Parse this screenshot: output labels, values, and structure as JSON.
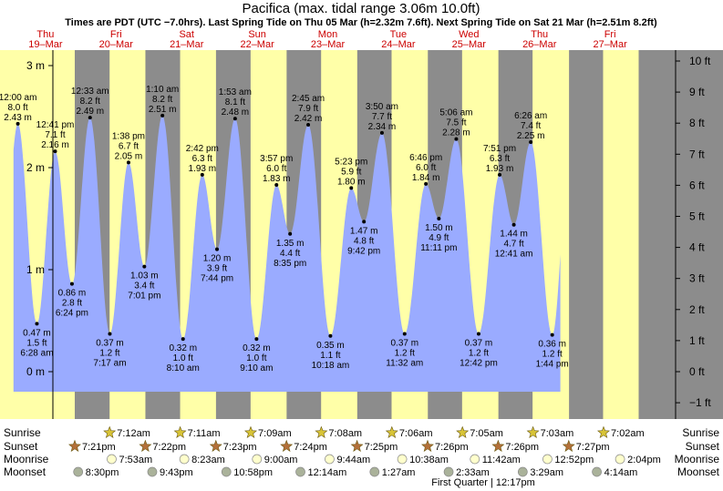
{
  "title": "Pacifica (max. tidal range 3.06m 10.0ft)",
  "subtitle": "Times are PDT (UTC −7.0hrs). Last Spring Tide on Thu 05 Mar (h=2.32m 7.6ft). Next Spring Tide on Sat 21 Mar (h=2.51m 8.2ft)",
  "colors": {
    "day": "#ffffa8",
    "night": "#8c8c8c",
    "tide": "#9aabff",
    "date_red": "#cc0000",
    "sun": "#d8c437",
    "sunset": "#b3703a",
    "moon": "#ffffcc",
    "moonset": "#aab29a"
  },
  "chart_data": {
    "type": "area",
    "title": "Pacifica (max. tidal range 3.06m 10.0ft)",
    "y_unit_left": "m",
    "y_unit_right": "ft",
    "left_ticks": [
      "3 m",
      "2 m",
      "1 m",
      "0 m"
    ],
    "left_tick_values": [
      3,
      2,
      1,
      0
    ],
    "right_ticks": [
      "10 ft",
      "9 ft",
      "8 ft",
      "7 ft",
      "6 ft",
      "5 ft",
      "4 ft",
      "3 ft",
      "2 ft",
      "1 ft",
      "0 ft",
      "−1 ft"
    ],
    "right_tick_values": [
      10,
      9,
      8,
      7,
      6,
      5,
      4,
      3,
      2,
      1,
      0,
      -1
    ],
    "ylim_m": [
      -0.47,
      3.06
    ],
    "x_range_hours": [
      0,
      216
    ],
    "days": [
      {
        "day": "Thu",
        "date": "19–Mar"
      },
      {
        "day": "Fri",
        "date": "20–Mar"
      },
      {
        "day": "Sat",
        "date": "21–Mar"
      },
      {
        "day": "Sun",
        "date": "22–Mar"
      },
      {
        "day": "Mon",
        "date": "23–Mar"
      },
      {
        "day": "Tue",
        "date": "24–Mar"
      },
      {
        "day": "Wed",
        "date": "25–Mar"
      },
      {
        "day": "Thu",
        "date": "26–Mar"
      },
      {
        "day": "Fri",
        "date": "27–Mar"
      }
    ],
    "sun_hours": [
      {
        "rise": null,
        "set": 19.35
      },
      {
        "rise": 31.2,
        "set": 43.37
      },
      {
        "rise": 55.18,
        "set": 67.38
      },
      {
        "rise": 79.15,
        "set": 91.4
      },
      {
        "rise": 103.13,
        "set": 115.42
      },
      {
        "rise": 127.1,
        "set": 139.43
      },
      {
        "rise": 151.08,
        "set": 163.43
      },
      {
        "rise": 175.05,
        "set": 187.45
      },
      {
        "rise": 199.03,
        "set": null
      }
    ],
    "tides": [
      {
        "h": 0.0,
        "m": 2.43,
        "ft": "8.0 ft",
        "time": "12:00 am",
        "type": "high"
      },
      {
        "h": 6.47,
        "m": 0.47,
        "ft": "1.5 ft",
        "time": "6:28 am",
        "type": "low"
      },
      {
        "h": 12.68,
        "m": 2.16,
        "ft": "7.1 ft",
        "time": "12:41 pm",
        "type": "high"
      },
      {
        "h": 18.4,
        "m": 0.86,
        "ft": "2.8 ft",
        "time": "6:24 pm",
        "type": "low"
      },
      {
        "h": 24.55,
        "m": 2.49,
        "ft": "8.2 ft",
        "time": "12:33 am",
        "type": "high"
      },
      {
        "h": 31.28,
        "m": 0.37,
        "ft": "1.2 ft",
        "time": "7:17 am",
        "type": "low"
      },
      {
        "h": 37.63,
        "m": 2.05,
        "ft": "6.7 ft",
        "time": "1:38 pm",
        "type": "high"
      },
      {
        "h": 43.02,
        "m": 1.03,
        "ft": "3.4 ft",
        "time": "7:01 pm",
        "type": "low"
      },
      {
        "h": 49.17,
        "m": 2.51,
        "ft": "8.2 ft",
        "time": "1:10 am",
        "type": "high"
      },
      {
        "h": 56.17,
        "m": 0.32,
        "ft": "1.0 ft",
        "time": "8:10 am",
        "type": "low"
      },
      {
        "h": 62.7,
        "m": 1.93,
        "ft": "6.3 ft",
        "time": "2:42 pm",
        "type": "high"
      },
      {
        "h": 67.73,
        "m": 1.2,
        "ft": "3.9 ft",
        "time": "7:44 pm",
        "type": "low"
      },
      {
        "h": 73.88,
        "m": 2.48,
        "ft": "8.1 ft",
        "time": "1:53 am",
        "type": "high"
      },
      {
        "h": 81.17,
        "m": 0.32,
        "ft": "1.0 ft",
        "time": "9:10 am",
        "type": "low"
      },
      {
        "h": 87.95,
        "m": 1.83,
        "ft": "6.0 ft",
        "time": "3:57 pm",
        "type": "high"
      },
      {
        "h": 92.58,
        "m": 1.35,
        "ft": "4.4 ft",
        "time": "8:35 pm",
        "type": "low"
      },
      {
        "h": 98.75,
        "m": 2.42,
        "ft": "7.9 ft",
        "time": "2:45 am",
        "type": "high"
      },
      {
        "h": 106.3,
        "m": 0.35,
        "ft": "1.1 ft",
        "time": "10:18 am",
        "type": "low"
      },
      {
        "h": 113.38,
        "m": 1.8,
        "ft": "5.9 ft",
        "time": "5:23 pm",
        "type": "high"
      },
      {
        "h": 117.7,
        "m": 1.47,
        "ft": "4.8 ft",
        "time": "9:42 pm",
        "type": "low"
      },
      {
        "h": 123.83,
        "m": 2.34,
        "ft": "7.7 ft",
        "time": "3:50 am",
        "type": "high"
      },
      {
        "h": 131.53,
        "m": 0.37,
        "ft": "1.2 ft",
        "time": "11:32 am",
        "type": "low"
      },
      {
        "h": 138.77,
        "m": 1.84,
        "ft": "6.0 ft",
        "time": "6:46 pm",
        "type": "high"
      },
      {
        "h": 143.18,
        "m": 1.5,
        "ft": "4.9 ft",
        "time": "11:11 pm",
        "type": "low"
      },
      {
        "h": 149.1,
        "m": 2.28,
        "ft": "7.5 ft",
        "time": "5:06 am",
        "type": "high"
      },
      {
        "h": 156.7,
        "m": 0.37,
        "ft": "1.2 ft",
        "time": "12:42 pm",
        "type": "low"
      },
      {
        "h": 163.85,
        "m": 1.93,
        "ft": "6.3 ft",
        "time": "7:51 pm",
        "type": "high"
      },
      {
        "h": 168.68,
        "m": 1.44,
        "ft": "4.7 ft",
        "time": "12:41 am",
        "type": "low"
      },
      {
        "h": 174.43,
        "m": 2.25,
        "ft": "7.4 ft",
        "time": "6:26 am",
        "type": "high"
      },
      {
        "h": 181.73,
        "m": 0.36,
        "ft": "1.2 ft",
        "time": "1:44 pm",
        "type": "low"
      }
    ],
    "sunrise": [
      "7:12am",
      "7:11am",
      "7:09am",
      "7:08am",
      "7:06am",
      "7:05am",
      "7:03am",
      "7:02am"
    ],
    "sunset": [
      "7:21pm",
      "7:22pm",
      "7:23pm",
      "7:24pm",
      "7:25pm",
      "7:26pm",
      "7:26pm",
      "7:27pm"
    ],
    "moonrise": [
      "7:53am",
      "8:23am",
      "9:00am",
      "9:44am",
      "10:38am",
      "11:42am",
      "12:52pm",
      "2:04pm"
    ],
    "moonset": [
      "8:30pm",
      "9:43pm",
      "10:58pm",
      "12:14am",
      "1:27am",
      "2:33am",
      "3:29am",
      "4:14am"
    ],
    "row_labels": {
      "sunrise": "Sunrise",
      "sunset": "Sunset",
      "moonrise": "Moonrise",
      "moonset": "Moonset"
    },
    "moon_phase": "First Quarter | 12:17pm"
  }
}
